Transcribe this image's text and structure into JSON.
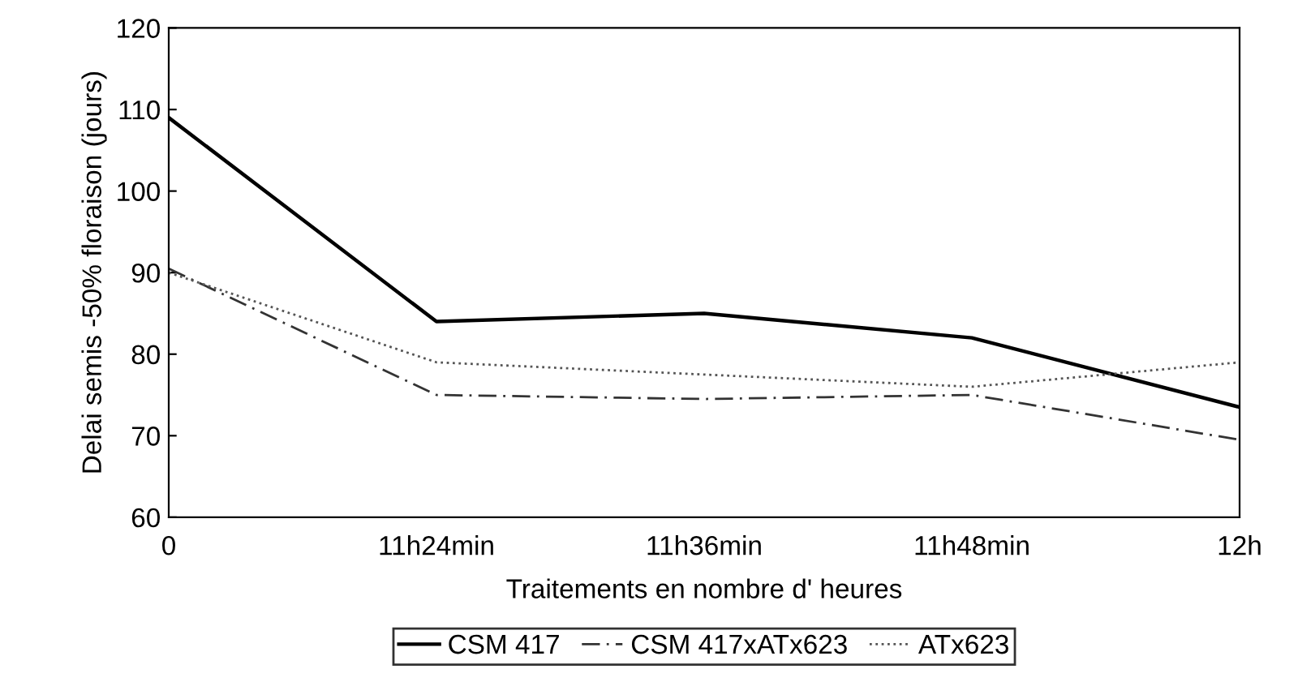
{
  "chart_data": {
    "type": "line",
    "xlabel": "Traitements en nombre d' heures",
    "ylabel": "Delai semis -50% floraison (jours)",
    "categories": [
      "0",
      "11h24min",
      "11h36min",
      "11h48min",
      "12h"
    ],
    "series": [
      {
        "name": "CSM 417",
        "color": "#000000",
        "values": [
          109,
          84,
          85,
          82,
          73.5
        ],
        "line_style": "solid"
      },
      {
        "name": "CSM 417xATx623",
        "color": "#333333",
        "values": [
          90.5,
          75,
          74.5,
          75,
          69.5
        ],
        "line_style": "dashed"
      },
      {
        "name": "ATx623",
        "color": "#555555",
        "values": [
          90,
          79,
          77.5,
          76,
          79
        ],
        "line_style": "dotted"
      }
    ],
    "ylim": [
      60,
      120
    ],
    "yticks": [
      60,
      70,
      80,
      90,
      100,
      110,
      120
    ],
    "grid": false,
    "legend": "bottom",
    "marker": "none"
  }
}
